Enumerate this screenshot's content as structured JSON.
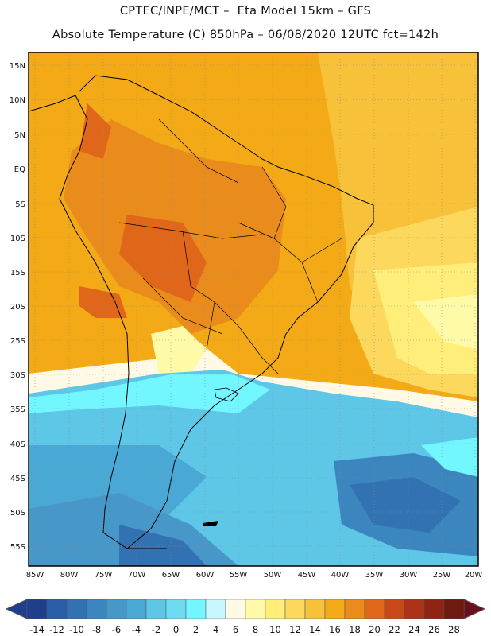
{
  "header": {
    "title_line1": "CPTEC/INPE/MCT –  Eta Model 15km – GFS",
    "title_line2": "Absolute Temperature (C) 850hPa – 06/08/2020 12UTC fct=142h"
  },
  "map": {
    "lat_labels": [
      "15N",
      "10N",
      "5N",
      "EQ",
      "5S",
      "10S",
      "15S",
      "20S",
      "25S",
      "30S",
      "35S",
      "40S",
      "45S",
      "50S",
      "55S"
    ],
    "lon_labels": [
      "85W",
      "80W",
      "75W",
      "70W",
      "65W",
      "60W",
      "55W",
      "50W",
      "45W",
      "40W",
      "35W",
      "30W",
      "25W",
      "20W"
    ]
  },
  "colorbar": {
    "labels": [
      "-14",
      "-12",
      "-10",
      "-8",
      "-6",
      "-4",
      "-2",
      "0",
      "2",
      "4",
      "6",
      "8",
      "10",
      "12",
      "14",
      "16",
      "18",
      "20",
      "22",
      "24",
      "26",
      "28"
    ],
    "colors": [
      "#1f3f8c",
      "#2a5ea8",
      "#3272b3",
      "#3c86c0",
      "#4797c8",
      "#4aa8d4",
      "#5ec6e6",
      "#6edcf0",
      "#72f6ff",
      "#c8f7ff",
      "#fff9e6",
      "#fffaa8",
      "#ffee7a",
      "#fcd85c",
      "#f7c23a",
      "#f3aa16",
      "#ea8c1c",
      "#e0671a",
      "#c9481a",
      "#ad3318",
      "#8f2314",
      "#6e1a10"
    ]
  }
}
